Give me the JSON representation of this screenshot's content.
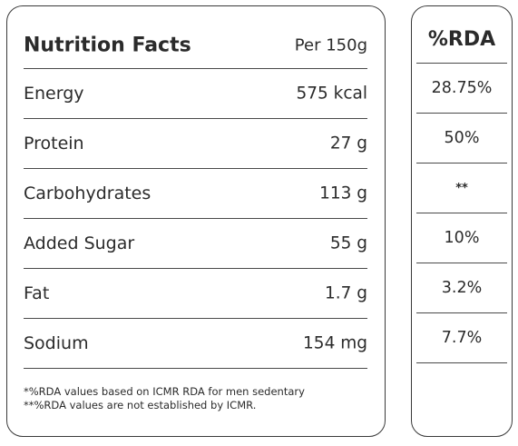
{
  "facts": {
    "title": "Nutrition Facts",
    "serving": "Per 150g",
    "rows": [
      {
        "label": "Energy",
        "value": "575 kcal"
      },
      {
        "label": "Protein",
        "value": "27 g"
      },
      {
        "label": "Carbohydrates",
        "value": "113 g"
      },
      {
        "label": "Added Sugar",
        "value": "55 g"
      },
      {
        "label": "Fat",
        "value": "1.7 g"
      },
      {
        "label": "Sodium",
        "value": "154 mg"
      }
    ],
    "footnotes": [
      "*%RDA values based on ICMR RDA for men sedentary",
      "**%RDA values are not established by ICMR."
    ]
  },
  "rda": {
    "header": "%RDA",
    "values": [
      "28.75%",
      "50%",
      "**",
      "10%",
      "3.2%",
      "7.7%"
    ]
  }
}
